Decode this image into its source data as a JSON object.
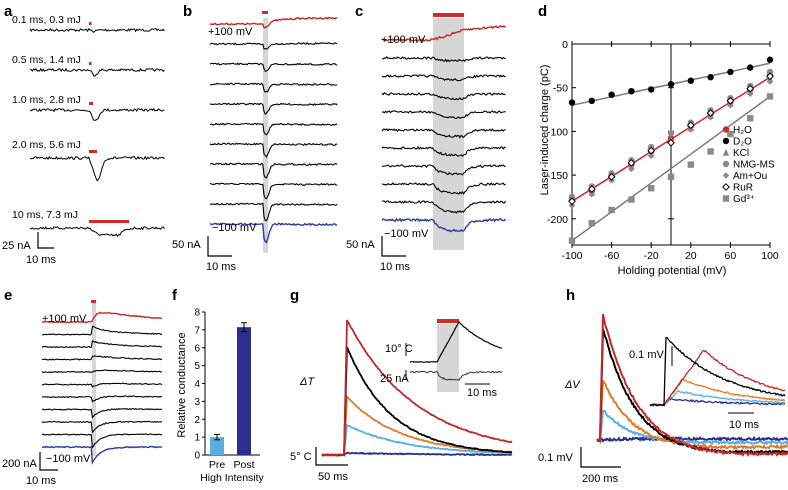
{
  "panels": {
    "a": {
      "label": "a",
      "pulses": [
        "0.1 ms, 0.3 mJ",
        "0.5 ms, 1.4 mJ",
        "1.0 ms, 2.8 mJ",
        "2.0 ms, 5.6 mJ",
        "10 ms, 7.3 mJ"
      ],
      "pulse_ms": [
        0.1,
        0.5,
        1.0,
        2.0,
        10
      ],
      "peak_nA": [
        2,
        8,
        18,
        36,
        12
      ],
      "scale_y": "25 nA",
      "scale_x": "10 ms"
    },
    "b": {
      "label": "b",
      "top_label": "+100 mV",
      "bottom_label": "−100 mV",
      "scale_y": "50 nA",
      "scale_x": "10 ms",
      "trace_count": 11
    },
    "c": {
      "label": "c",
      "top_label": "+100 mV",
      "bottom_label": "−100 mV",
      "scale_y": "50 nA",
      "scale_x": "10 ms",
      "trace_count": 11
    },
    "e": {
      "label": "e",
      "top_label": "+100 mV",
      "bottom_label": "−100 mV",
      "scale_y": "200 nA",
      "scale_x": "10 ms",
      "trace_count": 11
    },
    "g": {
      "label": "g",
      "y_label": "ΔT",
      "scale_y": "5° C",
      "scale_x": "50 ms",
      "inset_scale_t": "10° C",
      "inset_scale_i": "25 nA",
      "inset_scale_x": "10 ms"
    },
    "h": {
      "label": "h",
      "y_label": "ΔV",
      "scale_y": "0.1 mV",
      "scale_x": "200 ms",
      "inset_scale_y": "0.1 mV",
      "inset_scale_x": "10 ms"
    }
  },
  "chart_data": [
    {
      "panel": "d",
      "type": "scatter",
      "label": "d",
      "xlabel": "Holding potential (mV)",
      "ylabel": "Laser-induced charge (pC)",
      "xlim": [
        -100,
        100
      ],
      "ylim": [
        -230,
        0
      ],
      "xticks": [
        -100,
        -60,
        -20,
        20,
        60,
        100
      ],
      "yticks": [
        0,
        -50,
        -100,
        -150,
        -200
      ],
      "legend_position": "inside-right",
      "series": [
        {
          "name": "H₂O",
          "color": "#d42a2a",
          "marker": "circle",
          "x": [
            -100,
            -80,
            -60,
            -40,
            -20,
            0,
            20,
            40,
            60,
            80,
            100
          ],
          "y": [
            -178,
            -168,
            -150,
            -138,
            -123,
            -108,
            -94,
            -80,
            -66,
            -52,
            -36
          ]
        },
        {
          "name": "D₂O",
          "color": "#000000",
          "marker": "circle",
          "x": [
            -100,
            -80,
            -60,
            -40,
            -20,
            0,
            20,
            40,
            60,
            80,
            100
          ],
          "y": [
            -67,
            -65,
            -58,
            -54,
            -52,
            -46,
            -42,
            -38,
            -32,
            -27,
            -18
          ]
        },
        {
          "name": "KCl",
          "color": "#8a8a8a",
          "marker": "triangle",
          "x": [
            -100,
            -80,
            -60,
            -40,
            -20,
            0,
            20,
            40,
            60,
            80,
            100
          ],
          "y": [
            -182,
            -170,
            -154,
            -140,
            -125,
            -110,
            -96,
            -82,
            -68,
            -54,
            -40
          ]
        },
        {
          "name": "NMG-MS",
          "color": "#8a8a8a",
          "marker": "circle",
          "x": [
            -100,
            -80,
            -60,
            -40,
            -20,
            0,
            20,
            40,
            60,
            80,
            100
          ],
          "y": [
            -175,
            -163,
            -148,
            -133,
            -118,
            -102,
            -90,
            -76,
            -62,
            -48,
            -32
          ]
        },
        {
          "name": "Am+Ou",
          "color": "#8a8a8a",
          "marker": "diamond",
          "x": [
            -100,
            -80,
            -60,
            -40,
            -20,
            0,
            20,
            40,
            60,
            80,
            100
          ],
          "y": [
            -185,
            -172,
            -156,
            -143,
            -128,
            -113,
            -98,
            -84,
            -70,
            -57,
            -43
          ]
        },
        {
          "name": "RuR",
          "color": "#000000",
          "marker": "open-diamond",
          "x": [
            -100,
            -80,
            -60,
            -40,
            -20,
            0,
            20,
            40,
            60,
            80,
            100
          ],
          "y": [
            -180,
            -166,
            -152,
            -136,
            -122,
            -113,
            -93,
            -79,
            -65,
            -51,
            -37
          ]
        },
        {
          "name": "Gd³⁺",
          "color": "#8a8a8a",
          "marker": "square",
          "x": [
            -100,
            -80,
            -60,
            -40,
            -20,
            0,
            20,
            40,
            60,
            80,
            100
          ],
          "y": [
            -225,
            -205,
            -190,
            -178,
            -165,
            -152,
            -138,
            -123,
            -103,
            -85,
            -60
          ]
        }
      ],
      "fit_lines": [
        {
          "color": "#7a7a7a",
          "x": [
            -100,
            100
          ],
          "y": [
            -70,
            -22
          ]
        },
        {
          "color": "#d42a2a",
          "x": [
            -100,
            100
          ],
          "y": [
            -180,
            -38
          ]
        },
        {
          "color": "#7a7a7a",
          "x": [
            -100,
            100
          ],
          "y": [
            -225,
            -60
          ]
        }
      ]
    },
    {
      "panel": "f",
      "type": "bar",
      "label": "f",
      "ylabel": "Relative conductance",
      "categories": [
        "Pre",
        "Post"
      ],
      "category_sub": [
        "High",
        "Intensity"
      ],
      "values": [
        1.0,
        7.15
      ],
      "errors": [
        0.15,
        0.25
      ],
      "colors": [
        "#5aaee0",
        "#2b2f8c"
      ],
      "ylim": [
        0,
        8
      ],
      "yticks": [
        0,
        1,
        2,
        3,
        4,
        5,
        6,
        7,
        8
      ]
    }
  ]
}
